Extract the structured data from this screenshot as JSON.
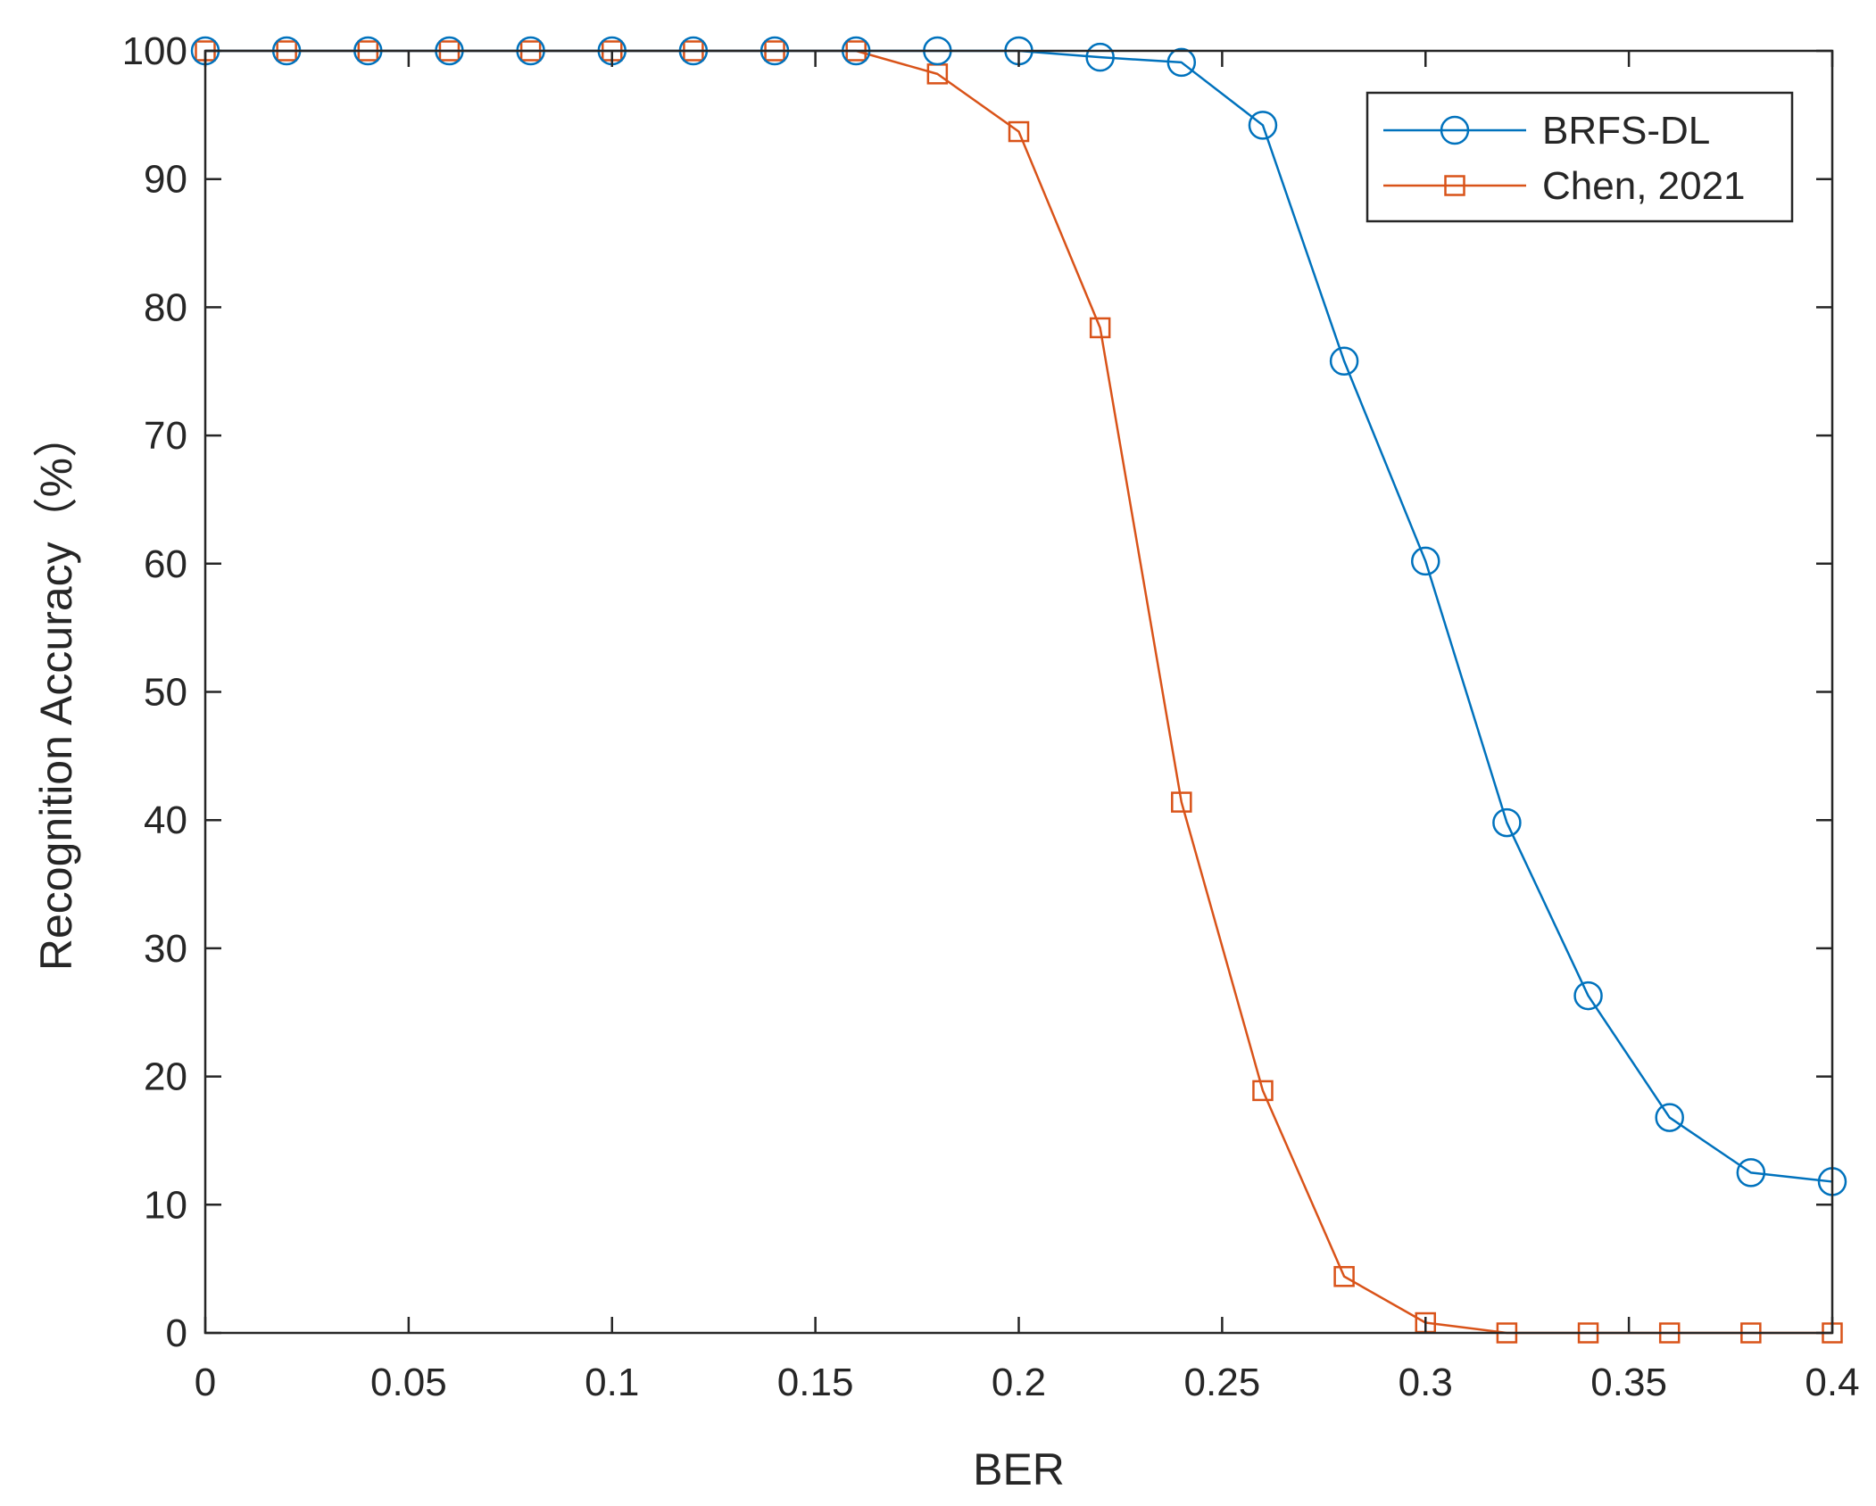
{
  "chart_data": {
    "type": "line",
    "xlabel": "BER",
    "ylabel": "Recognition Accuracy（%）",
    "xlim": [
      0,
      0.4
    ],
    "ylim": [
      0,
      100
    ],
    "xticks": [
      "0",
      "0.05",
      "0.1",
      "0.15",
      "0.2",
      "0.25",
      "0.3",
      "0.35",
      "0.4"
    ],
    "yticks": [
      "0",
      "10",
      "20",
      "30",
      "40",
      "50",
      "60",
      "70",
      "80",
      "90",
      "100"
    ],
    "grid": false,
    "legend_position": "top-right",
    "x": [
      0,
      0.02,
      0.04,
      0.06,
      0.08,
      0.1,
      0.12,
      0.14,
      0.16,
      0.18,
      0.2,
      0.22,
      0.24,
      0.26,
      0.28,
      0.3,
      0.32,
      0.34,
      0.36,
      0.38,
      0.4
    ],
    "series": [
      {
        "name": "BRFS-DL",
        "color": "#0072BD",
        "marker": "circle",
        "values": [
          100,
          100,
          100,
          100,
          100,
          100,
          100,
          100,
          100,
          100,
          100,
          99.5,
          99.1,
          94.2,
          75.8,
          60.2,
          39.8,
          26.3,
          16.8,
          12.5,
          11.8
        ]
      },
      {
        "name": "Chen, 2021",
        "color": "#D95319",
        "marker": "square",
        "values": [
          100,
          100,
          100,
          100,
          100,
          100,
          100,
          100,
          100,
          98.2,
          93.7,
          78.4,
          41.4,
          18.9,
          4.4,
          0.8,
          0,
          0,
          0,
          0,
          0
        ]
      }
    ]
  }
}
